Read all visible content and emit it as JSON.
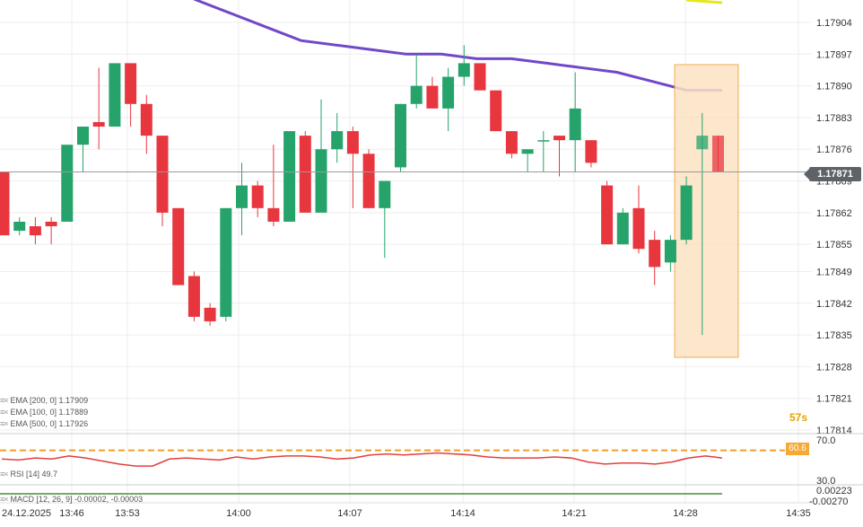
{
  "colors": {
    "up": "#26a36b",
    "down": "#e8363f",
    "ema": "#7048c8",
    "rsi": "#e2403c",
    "macd": "#4a8a3a",
    "highlight_fill": "#fce3c4",
    "highlight_stroke": "#f0a030",
    "rsi_level": "#f59e22",
    "grid": "#eeeeee"
  },
  "price_axis": {
    "ticks": [
      "1.17904",
      "1.17897",
      "1.17890",
      "1.17883",
      "1.17876",
      "1.17869",
      "1.17862",
      "1.17855",
      "1.17849",
      "1.17842",
      "1.17835",
      "1.17828",
      "1.17821",
      "1.17814"
    ],
    "current_price": "1.17871"
  },
  "time_axis": {
    "date_label": "24.12.2025",
    "labels": [
      "13:46",
      "13:53",
      "14:00",
      "14:07",
      "14:14",
      "14:21",
      "14:28",
      "14:35"
    ]
  },
  "legend": {
    "ema200": "EMA [200, 0] 1.17909",
    "ema100": "EMA [100, 0] 1.17889",
    "ema500": "EMA [500, 0] 1.17926",
    "rsi": "RSI [14] 49.7",
    "macd": "MACD [12, 26, 9] -0.00002, -0.00003"
  },
  "countdown": "57s",
  "rsi_pane": {
    "upper": "70.0",
    "lower": "30.0",
    "level_tag": "60.6"
  },
  "macd_pane": {
    "upper": "0.00223",
    "lower": "-0.00270"
  },
  "chart_data": {
    "type": "candlestick",
    "candles": [
      {
        "o": 1.17871,
        "h": 1.17871,
        "l": 1.17857,
        "c": 1.17857
      },
      {
        "o": 1.17858,
        "h": 1.17861,
        "l": 1.17857,
        "c": 1.1786
      },
      {
        "o": 1.17859,
        "h": 1.17861,
        "l": 1.17855,
        "c": 1.17857
      },
      {
        "o": 1.1786,
        "h": 1.17861,
        "l": 1.17855,
        "c": 1.17859
      },
      {
        "o": 1.1786,
        "h": 1.17877,
        "l": 1.1786,
        "c": 1.17877
      },
      {
        "o": 1.17877,
        "h": 1.17881,
        "l": 1.17871,
        "c": 1.17881
      },
      {
        "o": 1.17882,
        "h": 1.17894,
        "l": 1.17876,
        "c": 1.17881
      },
      {
        "o": 1.17881,
        "h": 1.17895,
        "l": 1.17881,
        "c": 1.17895
      },
      {
        "o": 1.17895,
        "h": 1.17895,
        "l": 1.17881,
        "c": 1.17886
      },
      {
        "o": 1.17886,
        "h": 1.17888,
        "l": 1.17875,
        "c": 1.17879
      },
      {
        "o": 1.17879,
        "h": 1.17879,
        "l": 1.17859,
        "c": 1.17862
      },
      {
        "o": 1.17863,
        "h": 1.17863,
        "l": 1.17846,
        "c": 1.17846
      },
      {
        "o": 1.17848,
        "h": 1.17849,
        "l": 1.17838,
        "c": 1.17839
      },
      {
        "o": 1.17841,
        "h": 1.17842,
        "l": 1.17837,
        "c": 1.17838
      },
      {
        "o": 1.17839,
        "h": 1.17863,
        "l": 1.17838,
        "c": 1.17863
      },
      {
        "o": 1.17863,
        "h": 1.17873,
        "l": 1.17857,
        "c": 1.17868
      },
      {
        "o": 1.17868,
        "h": 1.17869,
        "l": 1.17861,
        "c": 1.17863
      },
      {
        "o": 1.17863,
        "h": 1.17877,
        "l": 1.17859,
        "c": 1.1786
      },
      {
        "o": 1.1786,
        "h": 1.1788,
        "l": 1.1786,
        "c": 1.1788
      },
      {
        "o": 1.17879,
        "h": 1.1788,
        "l": 1.17862,
        "c": 1.17862
      },
      {
        "o": 1.17862,
        "h": 1.17887,
        "l": 1.17862,
        "c": 1.17876
      },
      {
        "o": 1.17876,
        "h": 1.17884,
        "l": 1.17873,
        "c": 1.1788
      },
      {
        "o": 1.1788,
        "h": 1.17881,
        "l": 1.17863,
        "c": 1.17875
      },
      {
        "o": 1.17875,
        "h": 1.17876,
        "l": 1.17863,
        "c": 1.17863
      },
      {
        "o": 1.17863,
        "h": 1.17869,
        "l": 1.17852,
        "c": 1.17869
      },
      {
        "o": 1.17872,
        "h": 1.17886,
        "l": 1.17871,
        "c": 1.17886
      },
      {
        "o": 1.17886,
        "h": 1.17897,
        "l": 1.17885,
        "c": 1.1789
      },
      {
        "o": 1.1789,
        "h": 1.17892,
        "l": 1.17885,
        "c": 1.17885
      },
      {
        "o": 1.17885,
        "h": 1.17894,
        "l": 1.1788,
        "c": 1.17892
      },
      {
        "o": 1.17892,
        "h": 1.17899,
        "l": 1.1789,
        "c": 1.17895
      },
      {
        "o": 1.17895,
        "h": 1.17895,
        "l": 1.17889,
        "c": 1.17889
      },
      {
        "o": 1.17889,
        "h": 1.17889,
        "l": 1.1788,
        "c": 1.1788
      },
      {
        "o": 1.1788,
        "h": 1.1788,
        "l": 1.17874,
        "c": 1.17875
      },
      {
        "o": 1.17875,
        "h": 1.17876,
        "l": 1.17871,
        "c": 1.17876
      },
      {
        "o": 1.17878,
        "h": 1.1788,
        "l": 1.17871,
        "c": 1.17878
      },
      {
        "o": 1.17879,
        "h": 1.17879,
        "l": 1.1787,
        "c": 1.17878
      },
      {
        "o": 1.17878,
        "h": 1.17893,
        "l": 1.17871,
        "c": 1.17885
      },
      {
        "o": 1.17878,
        "h": 1.17878,
        "l": 1.17872,
        "c": 1.17873
      },
      {
        "o": 1.17868,
        "h": 1.17869,
        "l": 1.17855,
        "c": 1.17855
      },
      {
        "o": 1.17855,
        "h": 1.17863,
        "l": 1.17855,
        "c": 1.17862
      },
      {
        "o": 1.17863,
        "h": 1.17868,
        "l": 1.17853,
        "c": 1.17854
      },
      {
        "o": 1.17856,
        "h": 1.17858,
        "l": 1.17846,
        "c": 1.1785
      },
      {
        "o": 1.17851,
        "h": 1.17857,
        "l": 1.17849,
        "c": 1.17856
      },
      {
        "o": 1.17856,
        "h": 1.1787,
        "l": 1.17855,
        "c": 1.17868
      },
      {
        "o": 1.17876,
        "h": 1.17884,
        "l": 1.17835,
        "c": 1.17879
      },
      {
        "o": 1.17879,
        "h": 1.17879,
        "l": 1.17871,
        "c": 1.17871
      }
    ],
    "ema": [
      1.17916,
      1.17913,
      1.17909,
      1.17906,
      1.17903,
      1.179,
      1.17899,
      1.17898,
      1.17897,
      1.17897,
      1.17896,
      1.17896,
      1.17895,
      1.17894,
      1.17893,
      1.17891,
      1.17889,
      1.17889
    ],
    "rsi": [
      52,
      51,
      53,
      52,
      55,
      53,
      50,
      47,
      45,
      45,
      52,
      53,
      52,
      51,
      54,
      52,
      54,
      55,
      55,
      54,
      52,
      53,
      56,
      57,
      56,
      57,
      58,
      57,
      56,
      54,
      53,
      53,
      53,
      54,
      53,
      49,
      47,
      48,
      48,
      47,
      49,
      53,
      55,
      53
    ]
  }
}
